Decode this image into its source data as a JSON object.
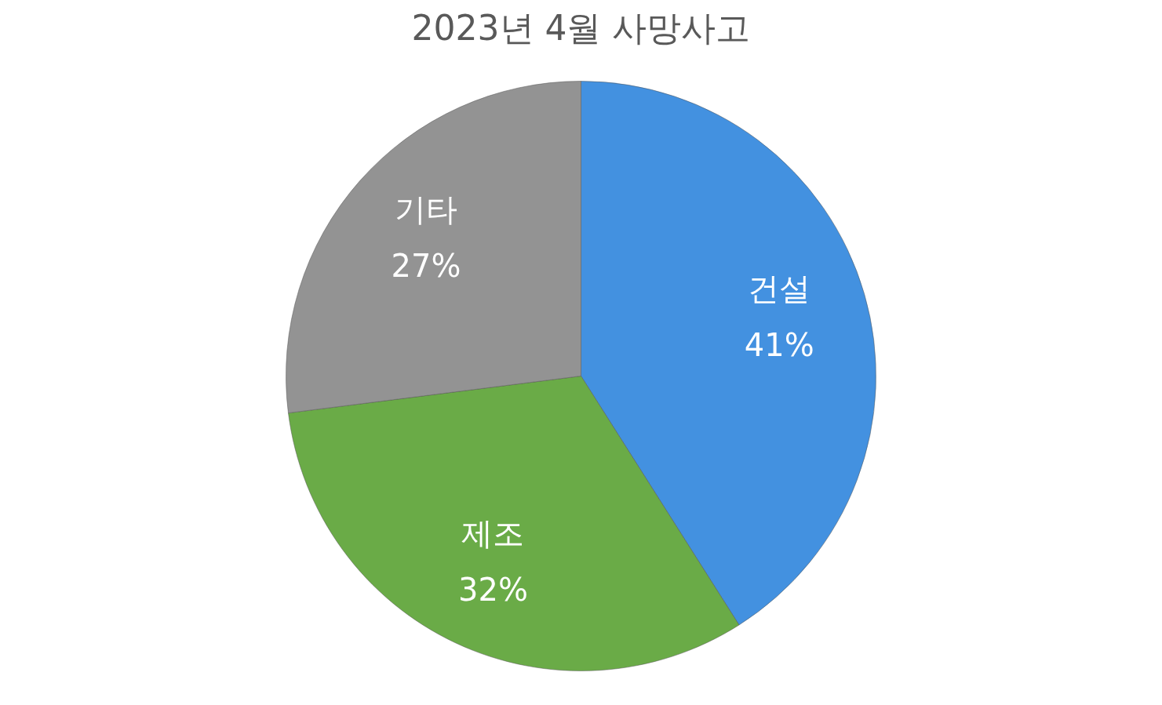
{
  "chart_data": {
    "type": "pie",
    "title": "2023년 4월 사망사고",
    "categories": [
      "건설",
      "제조",
      "기타"
    ],
    "values": [
      41,
      32,
      27
    ],
    "value_labels": [
      "41%",
      "32%",
      "27%"
    ],
    "colors": [
      "#4391e0",
      "#6aab47",
      "#939393"
    ]
  }
}
